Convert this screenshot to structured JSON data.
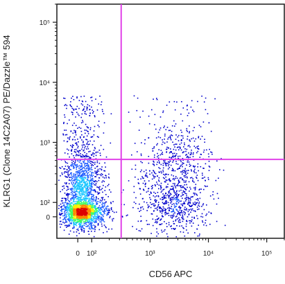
{
  "chart_data": {
    "type": "scatter",
    "subtype": "flow-cytometry-density-dot-plot",
    "xlabel": "CD56 APC",
    "ylabel": "KLRG1 (Clone 14C2A07) PE/Dazzle™ 594",
    "x_scale": "biexponential",
    "y_scale": "biexponential",
    "x_ticks": [
      {
        "value": 0,
        "label": "0"
      },
      {
        "value": 100,
        "label": "10²"
      },
      {
        "value": 1000,
        "label": "10³"
      },
      {
        "value": 10000,
        "label": "10⁴"
      },
      {
        "value": 100000,
        "label": "10⁵"
      }
    ],
    "y_ticks": [
      {
        "value": 0,
        "label": "0"
      },
      {
        "value": 100,
        "label": "10²"
      },
      {
        "value": 1000,
        "label": "10³"
      },
      {
        "value": 10000,
        "label": "10⁴"
      },
      {
        "value": 100000,
        "label": "10⁵"
      }
    ],
    "xlim": [
      -150,
      200000
    ],
    "ylim": [
      -150,
      200000
    ],
    "quadrant_gate": {
      "x": 320,
      "y": 520,
      "color": "#e040e8"
    },
    "populations": [
      {
        "name": "",
        "x_center": 30,
        "y_center": 60,
        "count": 2600,
        "x_spread": 70,
        "y_spread": 90,
        "core_density": "high"
      },
      {
        "name": "",
        "x_center": 2500,
        "y_center": 150,
        "count": 1100,
        "x_spread_log": 0.32,
        "y_spread": 220,
        "core_density": "medium"
      }
    ],
    "density_colors": [
      "#0000cc",
      "#1e5cff",
      "#20c8ff",
      "#40ff60",
      "#ffee00",
      "#ff8800",
      "#dd0000"
    ],
    "grid": false
  }
}
